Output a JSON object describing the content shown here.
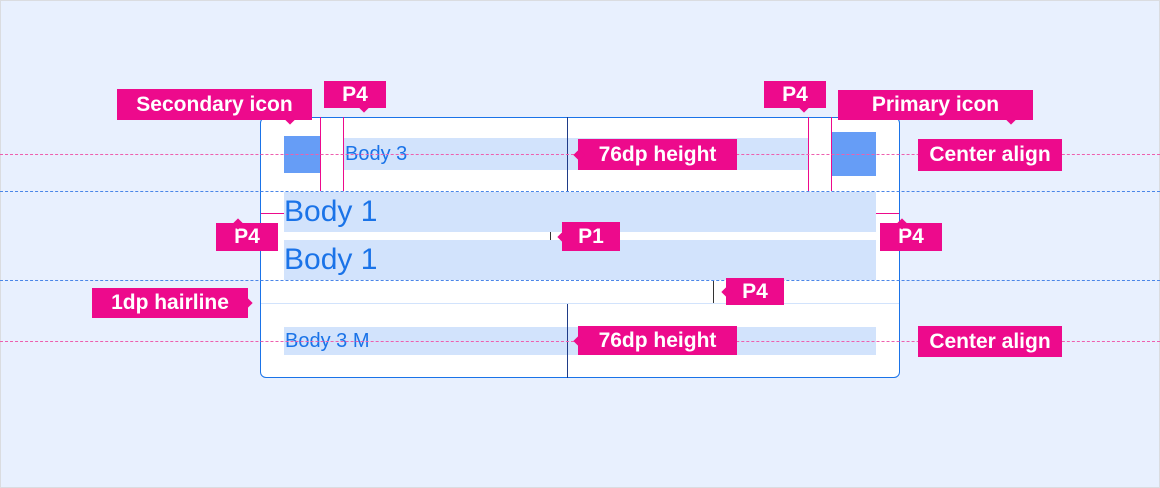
{
  "colors": {
    "accent": "#ed0a8c",
    "blue": "#1a73e8",
    "icon": "#669df6",
    "fill": "#d2e3fc",
    "background": "#e8f0fe"
  },
  "samples": {
    "body3": "Body 3",
    "body1a": "Body 1",
    "body1b": "Body 1",
    "body3m": "Body 3 M"
  },
  "annotations": {
    "secondary_icon": "Secondary icon",
    "p4_left_top": "P4",
    "p4_right_top": "P4",
    "primary_icon": "Primary icon",
    "height_top": "76dp height",
    "center_top": "Center align",
    "p4_left": "P4",
    "p1": "P1",
    "p4_right": "P4",
    "hairline": "1dp hairline",
    "p4_bottom": "P4",
    "height_bottom": "76dp height",
    "center_bottom": "Center align"
  }
}
